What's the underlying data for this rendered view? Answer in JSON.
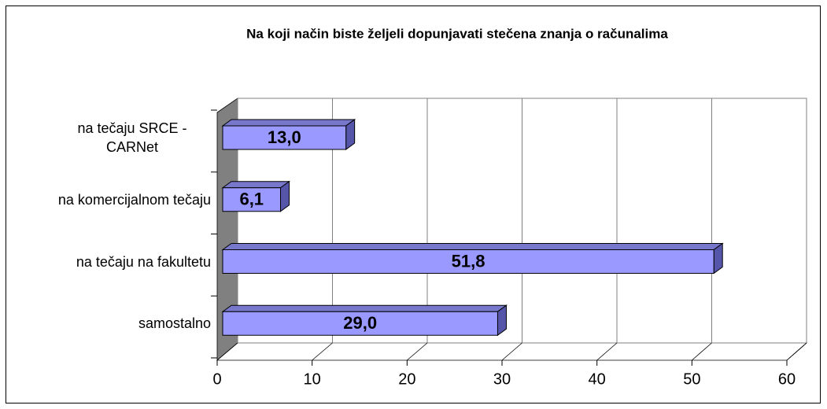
{
  "chart_data": {
    "type": "bar3d_horizontal",
    "title": "Na koji način biste željeli dopunjavati stečena znanja o računalima",
    "categories": [
      "na tečaju SRCE - CARNet",
      "na komercijalnom tečaju",
      "na tečaju na fakultetu",
      "samostalno"
    ],
    "values": [
      13.0,
      6.1,
      51.8,
      29.0
    ],
    "value_labels": [
      "13,0",
      "6,1",
      "51,8",
      "29,0"
    ],
    "color": "#9999ff",
    "xlim": [
      0,
      60
    ],
    "xticks": [
      0,
      10,
      20,
      30,
      40,
      50,
      60
    ],
    "grid": true
  }
}
